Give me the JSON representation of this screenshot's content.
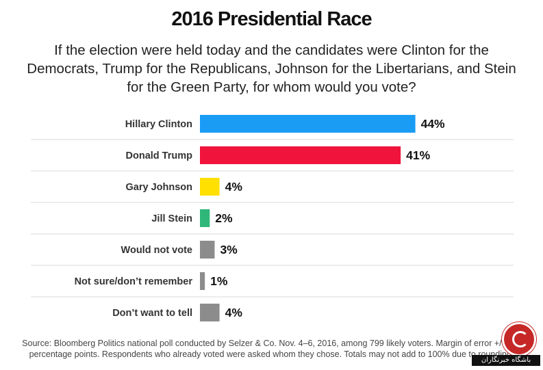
{
  "header": {
    "title": "2016 Presidential Race",
    "subtitle": "If the election were held today and the candidates were Clinton for the Democrats, Trump for the Republicans, Johnson for the Libertarians, and Stein for the Green Party, for whom would you vote?"
  },
  "chart_data": {
    "type": "bar",
    "orientation": "horizontal",
    "categories": [
      "Hillary Clinton",
      "Donald Trump",
      "Gary Johnson",
      "Jill Stein",
      "Would not vote",
      "Not sure/don’t remember",
      "Don’t want to tell"
    ],
    "values": [
      44,
      41,
      4,
      2,
      3,
      1,
      4
    ],
    "value_labels": [
      "44%",
      "41%",
      "4%",
      "2%",
      "3%",
      "1%",
      "4%"
    ],
    "colors": [
      "#1a9cf5",
      "#f0143c",
      "#ffe000",
      "#2fb779",
      "#8c8c8c",
      "#8c8c8c",
      "#8c8c8c"
    ],
    "unit": "%",
    "grid": false,
    "legend": "none"
  },
  "footer": {
    "source": "Source: Bloomberg Politics national poll conducted by Selzer & Co. Nov. 4–6, 2016, among 799 likely voters. Margin of error +/− 3.5 percentage points. Respondents who already voted were asked whom they chose. Totals may not add to 100% due to rounding."
  },
  "watermark": {
    "text": "باشگاه خبرنگاران"
  }
}
